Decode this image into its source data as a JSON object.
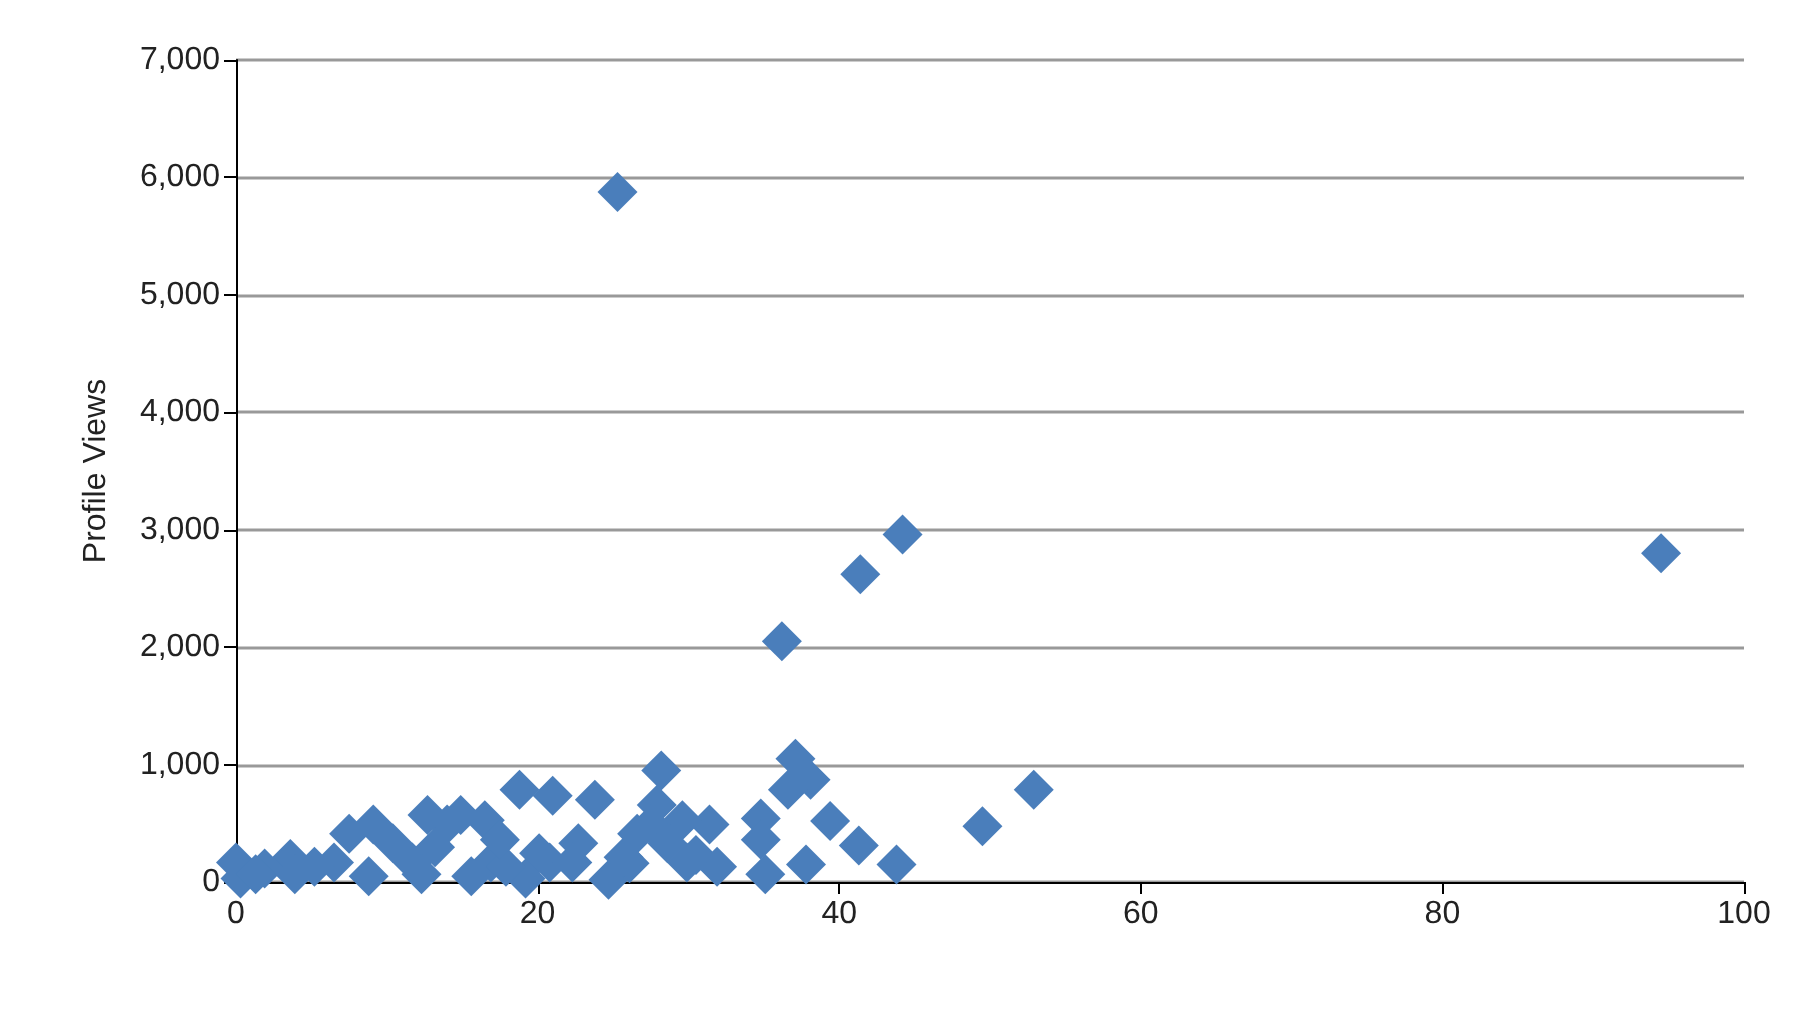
{
  "chart_data": {
    "type": "scatter",
    "ylabel": "Profile Views",
    "marker": "diamond",
    "grid": "y",
    "xlim": [
      0,
      100
    ],
    "xticks": [
      0,
      20,
      40,
      60,
      80,
      100
    ],
    "ylim": [
      0,
      7000
    ],
    "yticks": [
      0,
      {
        "value": 1000,
        "label": "1,000"
      },
      {
        "value": 2000,
        "label": "2,000"
      },
      {
        "value": 3000,
        "label": "3,000"
      },
      {
        "value": 4000,
        "label": "4,000"
      },
      {
        "value": 5000,
        "label": "5,000"
      },
      {
        "value": 6000,
        "label": "6,000"
      },
      {
        "value": 7000,
        "label": "7,000"
      }
    ],
    "series": [
      {
        "color": "#4a7ebb",
        "x": [
          25.3,
          44.2,
          41.4,
          36.2,
          94.5,
          52.9,
          49.5,
          43.8,
          41.3,
          39.4,
          37.8,
          35.1,
          34.8,
          34.8,
          37.1,
          38.1,
          36.6,
          28.2,
          31.4,
          29.6,
          27.9,
          27.5,
          28.6,
          30.5,
          31.9,
          24.7,
          23.8,
          21.0,
          18.8,
          26.6,
          26.1,
          22.7,
          20.1,
          19.2,
          16.9,
          16.5,
          14.9,
          14.0,
          12.7,
          13.2,
          11.7,
          9.1,
          7.5,
          10.4,
          6.5,
          5.2,
          3.6,
          1.9,
          0,
          0.3,
          1.3,
          3.9,
          8.8,
          12.3,
          15.6,
          17.9,
          20.8,
          22.3,
          29.9,
          25.7,
          17.5
        ],
        "values": [
          5875,
          2960,
          2620,
          2050,
          2800,
          785,
          475,
          150,
          310,
          520,
          150,
          65,
          540,
          360,
          1050,
          870,
          785,
          950,
          490,
          525,
          655,
          490,
          330,
          230,
          130,
          20,
          700,
          735,
          785,
          410,
          160,
          330,
          245,
          30,
          165,
          525,
          570,
          490,
          570,
          295,
          165,
          490,
          410,
          330,
          165,
          130,
          195,
          115,
          165,
          30,
          65,
          65,
          50,
          65,
          50,
          130,
          165,
          165,
          165,
          210,
          360
        ]
      }
    ]
  }
}
